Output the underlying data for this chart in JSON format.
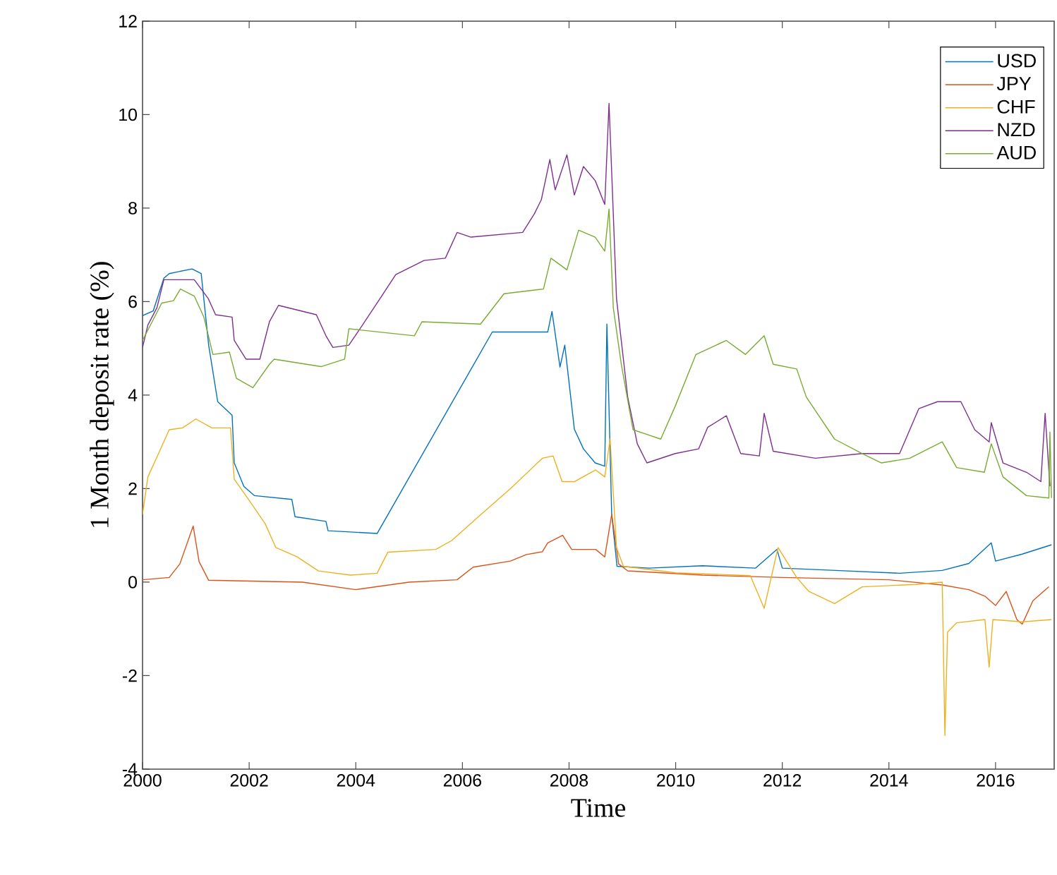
{
  "chart_data": {
    "type": "line",
    "xlabel": "Time",
    "ylabel": "1 Month deposit rate (%)",
    "xlim": [
      2000,
      2017.1
    ],
    "ylim": [
      -4,
      12
    ],
    "xticks": [
      2000,
      2002,
      2004,
      2006,
      2008,
      2010,
      2012,
      2014,
      2016
    ],
    "yticks": [
      -4,
      -2,
      0,
      2,
      4,
      6,
      8,
      10,
      12
    ],
    "legend": "top right",
    "series": [
      {
        "name": "USD",
        "color": "#0072bd",
        "x": [
          2000.0,
          2000.2,
          2000.4,
          2000.5,
          2000.93,
          2001.1,
          2001.24,
          2001.41,
          2001.68,
          2001.72,
          2001.9,
          2002.1,
          2002.8,
          2002.86,
          2003.44,
          2003.48,
          2004.4,
          2006.56,
          2007.6,
          2007.68,
          2007.83,
          2007.92,
          2008.1,
          2008.27,
          2008.49,
          2008.67,
          2008.71,
          2008.8,
          2008.9,
          2009.5,
          2010.5,
          2011.5,
          2011.9,
          2012.0,
          2013.0,
          2014.2,
          2015.0,
          2015.5,
          2015.92,
          2016.0,
          2016.5,
          2017.05
        ],
        "values": [
          5.7,
          5.8,
          6.5,
          6.6,
          6.7,
          6.6,
          5.07,
          3.86,
          3.57,
          2.55,
          2.05,
          1.85,
          1.77,
          1.4,
          1.3,
          1.1,
          1.04,
          5.35,
          5.35,
          5.79,
          4.6,
          5.07,
          3.27,
          2.85,
          2.55,
          2.48,
          5.52,
          1.45,
          0.34,
          0.3,
          0.35,
          0.3,
          0.7,
          0.3,
          0.25,
          0.19,
          0.25,
          0.4,
          0.84,
          0.45,
          0.6,
          0.8
        ]
      },
      {
        "name": "JPY",
        "color": "#d95319",
        "x": [
          2000.0,
          2000.5,
          2000.7,
          2000.95,
          2001.06,
          2001.24,
          2003.0,
          2004.0,
          2005.0,
          2005.9,
          2006.2,
          2006.9,
          2007.2,
          2007.5,
          2007.6,
          2007.88,
          2008.05,
          2008.5,
          2008.67,
          2008.8,
          2008.93,
          2009.1,
          2010.5,
          2012.0,
          2014.0,
          2015.0,
          2015.5,
          2015.8,
          2016.0,
          2016.2,
          2016.4,
          2016.5,
          2016.7,
          2016.8,
          2017.0
        ],
        "values": [
          0.05,
          0.1,
          0.39,
          1.2,
          0.44,
          0.04,
          0.0,
          -0.16,
          0.0,
          0.05,
          0.32,
          0.45,
          0.59,
          0.65,
          0.84,
          1.0,
          0.7,
          0.7,
          0.54,
          1.45,
          0.39,
          0.24,
          0.15,
          0.1,
          0.05,
          -0.06,
          -0.16,
          -0.3,
          -0.5,
          -0.2,
          -0.8,
          -0.9,
          -0.4,
          -0.3,
          -0.1
        ]
      },
      {
        "name": "CHF",
        "color": "#edb120",
        "x": [
          2000.0,
          2000.1,
          2000.3,
          2000.5,
          2000.75,
          2001.0,
          2001.3,
          2001.65,
          2001.72,
          2002.0,
          2002.3,
          2002.5,
          2002.9,
          2003.3,
          2003.9,
          2004.4,
          2004.6,
          2005.5,
          2005.8,
          2006.3,
          2006.9,
          2007.5,
          2007.7,
          2007.87,
          2008.1,
          2008.5,
          2008.67,
          2008.77,
          2008.89,
          2009.02,
          2010.0,
          2011.4,
          2011.66,
          2011.92,
          2012.27,
          2012.5,
          2012.98,
          2013.5,
          2014.5,
          2015.0,
          2015.05,
          2015.1,
          2015.27,
          2015.8,
          2015.88,
          2015.95,
          2016.5,
          2017.05
        ],
        "values": [
          1.45,
          2.25,
          2.75,
          3.26,
          3.3,
          3.49,
          3.3,
          3.3,
          2.2,
          1.75,
          1.25,
          0.74,
          0.54,
          0.24,
          0.15,
          0.19,
          0.64,
          0.7,
          0.89,
          1.4,
          2.0,
          2.65,
          2.7,
          2.15,
          2.15,
          2.4,
          2.25,
          3.06,
          0.74,
          0.34,
          0.2,
          0.14,
          -0.56,
          0.74,
          0.1,
          -0.2,
          -0.46,
          -0.1,
          -0.05,
          0.0,
          -3.28,
          -1.07,
          -0.87,
          -0.8,
          -1.82,
          -0.8,
          -0.85,
          -0.8
        ]
      },
      {
        "name": "NZD",
        "color": "#7e2f8e",
        "x": [
          2000.0,
          2000.1,
          2000.27,
          2000.4,
          2000.97,
          2001.23,
          2001.37,
          2001.68,
          2001.72,
          2001.94,
          2002.2,
          2002.38,
          2002.55,
          2003.26,
          2003.44,
          2003.57,
          2003.87,
          2004.05,
          2004.4,
          2004.75,
          2005.28,
          2005.68,
          2005.9,
          2006.16,
          2007.13,
          2007.35,
          2007.48,
          2007.64,
          2007.74,
          2007.96,
          2008.1,
          2008.27,
          2008.49,
          2008.67,
          2008.75,
          2008.83,
          2008.89,
          2009.1,
          2009.28,
          2009.46,
          2009.99,
          2010.43,
          2010.6,
          2010.95,
          2011.22,
          2011.57,
          2011.66,
          2011.83,
          2012.62,
          2013.5,
          2014.2,
          2014.56,
          2014.91,
          2015.35,
          2015.61,
          2015.88,
          2015.92,
          2016.14,
          2016.58,
          2016.85,
          2016.93,
          2017.02
        ],
        "values": [
          5.02,
          5.5,
          5.87,
          6.47,
          6.47,
          6.07,
          5.72,
          5.67,
          5.17,
          4.77,
          4.77,
          5.57,
          5.92,
          5.72,
          5.27,
          5.02,
          5.07,
          5.37,
          5.97,
          6.58,
          6.88,
          6.93,
          7.48,
          7.38,
          7.48,
          7.88,
          8.18,
          9.04,
          8.39,
          9.14,
          8.28,
          8.89,
          8.59,
          8.08,
          10.24,
          7.88,
          6.07,
          3.96,
          2.96,
          2.55,
          2.75,
          2.85,
          3.31,
          3.56,
          2.75,
          2.7,
          3.61,
          2.8,
          2.65,
          2.75,
          2.75,
          3.71,
          3.86,
          3.86,
          3.26,
          3.0,
          3.41,
          2.55,
          2.35,
          2.15,
          3.61,
          2.05
        ]
      },
      {
        "name": "AUD",
        "color": "#77ac30",
        "x": [
          2000.0,
          2000.36,
          2000.58,
          2000.71,
          2000.97,
          2001.15,
          2001.32,
          2001.63,
          2001.76,
          2002.07,
          2002.38,
          2002.47,
          2003.35,
          2003.79,
          2003.87,
          2005.1,
          2005.24,
          2006.34,
          2006.78,
          2007.52,
          2007.66,
          2007.96,
          2008.18,
          2008.49,
          2008.67,
          2008.75,
          2008.83,
          2008.98,
          2009.2,
          2009.46,
          2009.72,
          2009.99,
          2010.38,
          2010.95,
          2011.31,
          2011.66,
          2011.83,
          2012.27,
          2012.45,
          2012.98,
          2013.5,
          2013.86,
          2014.39,
          2015.0,
          2015.27,
          2015.79,
          2015.92,
          2016.14,
          2016.58,
          2017.0,
          2017.02,
          2017.05
        ],
        "values": [
          5.17,
          5.97,
          6.02,
          6.27,
          6.12,
          5.67,
          4.87,
          4.92,
          4.36,
          4.16,
          4.66,
          4.77,
          4.61,
          4.77,
          5.42,
          5.27,
          5.57,
          5.52,
          6.17,
          6.27,
          6.93,
          6.68,
          7.53,
          7.38,
          7.08,
          7.98,
          5.87,
          4.66,
          3.26,
          3.16,
          3.06,
          3.76,
          4.87,
          5.17,
          4.87,
          5.27,
          4.66,
          4.56,
          3.96,
          3.06,
          2.75,
          2.55,
          2.65,
          3.0,
          2.45,
          2.35,
          2.96,
          2.25,
          1.85,
          1.8,
          3.21,
          1.8
        ]
      }
    ]
  }
}
